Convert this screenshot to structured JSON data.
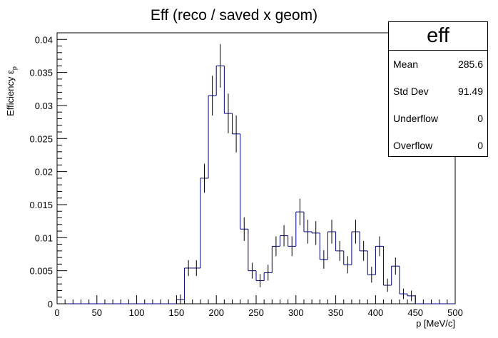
{
  "chart_data": {
    "type": "bar",
    "style": "histogram-with-errors",
    "title": "Eff (reco / saved x geom)",
    "xlabel": "p [MeV/c]",
    "ylabel": "Efficiency ε",
    "ylabel_subscript": "p",
    "xlim": [
      0,
      500
    ],
    "ylim": [
      0,
      0.041
    ],
    "x_ticks": [
      0,
      50,
      100,
      150,
      200,
      250,
      300,
      350,
      400,
      450,
      500
    ],
    "y_ticks": [
      0,
      0.005,
      0.01,
      0.015,
      0.02,
      0.025,
      0.03,
      0.035,
      0.04
    ],
    "y_tick_labels": [
      "0",
      "0.005",
      "0.01",
      "0.015",
      "0.02",
      "0.025",
      "0.03",
      "0.035",
      "0.04"
    ],
    "bin_width": 10,
    "bin_low_edges": [
      0,
      10,
      20,
      30,
      40,
      50,
      60,
      70,
      80,
      90,
      100,
      110,
      120,
      130,
      140,
      150,
      160,
      170,
      180,
      190,
      200,
      210,
      220,
      230,
      240,
      250,
      260,
      270,
      280,
      290,
      300,
      310,
      320,
      330,
      340,
      350,
      360,
      370,
      380,
      390,
      400,
      410,
      420,
      430,
      440,
      450,
      460,
      470,
      480,
      490
    ],
    "values": [
      0,
      0,
      0,
      0,
      0,
      0,
      0,
      0,
      0,
      0,
      0,
      0,
      0,
      0,
      0,
      0.0006,
      0.0054,
      0.0054,
      0.019,
      0.0315,
      0.036,
      0.0288,
      0.0257,
      0.0113,
      0.005,
      0.0035,
      0.0047,
      0.0087,
      0.0103,
      0.0087,
      0.0139,
      0.0109,
      0.0107,
      0.0067,
      0.0109,
      0.008,
      0.0059,
      0.0109,
      0.008,
      0.0044,
      0.0087,
      0.0028,
      0.0057,
      0.0015,
      0.0012,
      0,
      0,
      0,
      0,
      0
    ],
    "errors": [
      0,
      0,
      0,
      0,
      0,
      0,
      0,
      0,
      0,
      0,
      0,
      0,
      0,
      0,
      0,
      0.0008,
      0.0012,
      0.0012,
      0.0022,
      0.003,
      0.0033,
      0.003,
      0.0028,
      0.0018,
      0.0012,
      0.001,
      0.0012,
      0.0015,
      0.0016,
      0.0015,
      0.002,
      0.0018,
      0.0018,
      0.0014,
      0.0018,
      0.0015,
      0.0013,
      0.0018,
      0.0015,
      0.0012,
      0.0015,
      0.001,
      0.0013,
      0.0008,
      0.0008,
      0,
      0,
      0,
      0,
      0
    ],
    "line_color": "#000080",
    "error_color": "#000000",
    "grid": false,
    "stats_box": {
      "title": "eff",
      "rows": [
        {
          "label": "Mean",
          "value": "285.6"
        },
        {
          "label": "Std Dev",
          "value": "91.49"
        },
        {
          "label": "Underflow",
          "value": "0"
        },
        {
          "label": "Overflow",
          "value": "0"
        }
      ],
      "placement": "top-right"
    }
  }
}
